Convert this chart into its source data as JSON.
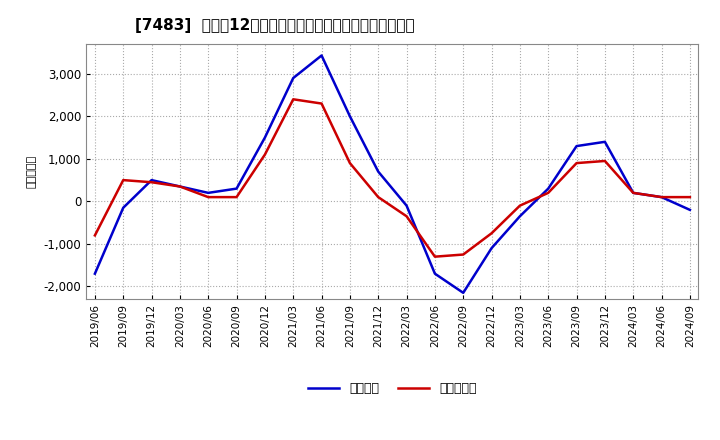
{
  "title": "[7483]  利益の12か月移動合計の対前年同期増減額の推移",
  "ylabel": "（百万円）",
  "ylim": [
    -2300,
    3700
  ],
  "yticks": [
    -2000,
    -1000,
    0,
    1000,
    2000,
    3000
  ],
  "legend_labels": [
    "経常利益",
    "当期純利益"
  ],
  "line_colors": [
    "#0000cc",
    "#cc0000"
  ],
  "background_color": "#ffffff",
  "plot_bg_color": "#ffffff",
  "grid_color": "#aaaaaa",
  "x_labels": [
    "2019/06",
    "2019/09",
    "2019/12",
    "2020/03",
    "2020/06",
    "2020/09",
    "2020/12",
    "2021/03",
    "2021/06",
    "2021/09",
    "2021/12",
    "2022/03",
    "2022/06",
    "2022/09",
    "2022/12",
    "2023/03",
    "2023/06",
    "2023/09",
    "2023/12",
    "2024/03",
    "2024/06",
    "2024/09"
  ],
  "series_keiri": [
    -1700,
    -150,
    500,
    350,
    200,
    300,
    1500,
    2900,
    3430,
    2000,
    700,
    -100,
    -1700,
    -2150,
    -1100,
    -350,
    300,
    1300,
    1400,
    200,
    100,
    -200
  ],
  "series_junri": [
    -800,
    500,
    450,
    350,
    100,
    100,
    1100,
    2400,
    2300,
    900,
    100,
    -350,
    -1300,
    -1250,
    -750,
    -100,
    200,
    900,
    950,
    200,
    100,
    100
  ]
}
